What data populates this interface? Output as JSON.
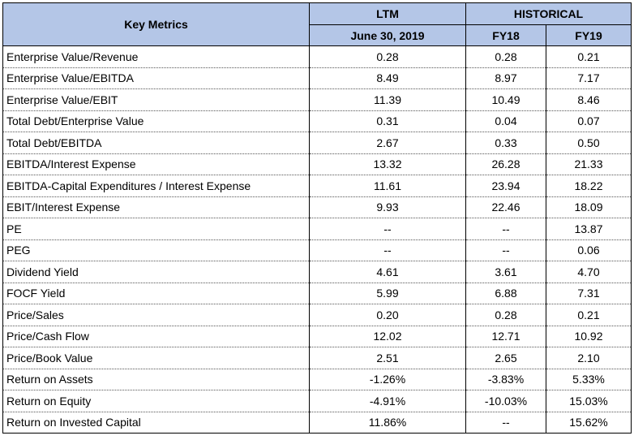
{
  "header": {
    "key_metrics": "Key Metrics",
    "ltm": "LTM",
    "historical": "HISTORICAL",
    "ltm_date": "June 30, 2019",
    "fy18": "FY18",
    "fy19": "FY19"
  },
  "rows": [
    {
      "metric": "Enterprise Value/Revenue",
      "ltm": "0.28",
      "fy18": "0.28",
      "fy19": "0.21"
    },
    {
      "metric": "Enterprise Value/EBITDA",
      "ltm": "8.49",
      "fy18": "8.97",
      "fy19": "7.17"
    },
    {
      "metric": "Enterprise Value/EBIT",
      "ltm": "11.39",
      "fy18": "10.49",
      "fy19": "8.46"
    },
    {
      "metric": "Total Debt/Enterprise Value",
      "ltm": "0.31",
      "fy18": "0.04",
      "fy19": "0.07"
    },
    {
      "metric": "Total Debt/EBITDA",
      "ltm": "2.67",
      "fy18": "0.33",
      "fy19": "0.50"
    },
    {
      "metric": "EBITDA/Interest Expense",
      "ltm": "13.32",
      "fy18": "26.28",
      "fy19": "21.33"
    },
    {
      "metric": "EBITDA-Capital Expenditures / Interest Expense",
      "ltm": "11.61",
      "fy18": "23.94",
      "fy19": "18.22"
    },
    {
      "metric": "EBIT/Interest Expense",
      "ltm": "9.93",
      "fy18": "22.46",
      "fy19": "18.09"
    },
    {
      "metric": "PE",
      "ltm": "--",
      "fy18": "--",
      "fy19": "13.87"
    },
    {
      "metric": "PEG",
      "ltm": "--",
      "fy18": "--",
      "fy19": "0.06"
    },
    {
      "metric": "Dividend Yield",
      "ltm": "4.61",
      "fy18": "3.61",
      "fy19": "4.70"
    },
    {
      "metric": "FOCF Yield",
      "ltm": "5.99",
      "fy18": "6.88",
      "fy19": "7.31"
    },
    {
      "metric": "Price/Sales",
      "ltm": "0.20",
      "fy18": "0.28",
      "fy19": "0.21"
    },
    {
      "metric": "Price/Cash Flow",
      "ltm": "12.02",
      "fy18": "12.71",
      "fy19": "10.92"
    },
    {
      "metric": "Price/Book Value",
      "ltm": "2.51",
      "fy18": "2.65",
      "fy19": "2.10"
    },
    {
      "metric": "Return on Assets",
      "ltm": "-1.26%",
      "fy18": "-3.83%",
      "fy19": "5.33%"
    },
    {
      "metric": "Return on Equity",
      "ltm": "-4.91%",
      "fy18": "-10.03%",
      "fy19": "15.03%"
    },
    {
      "metric": "Return on Invested Capital",
      "ltm": "11.86%",
      "fy18": "--",
      "fy19": "15.62%"
    }
  ],
  "colors": {
    "header_fill": "#b4c6e7"
  }
}
